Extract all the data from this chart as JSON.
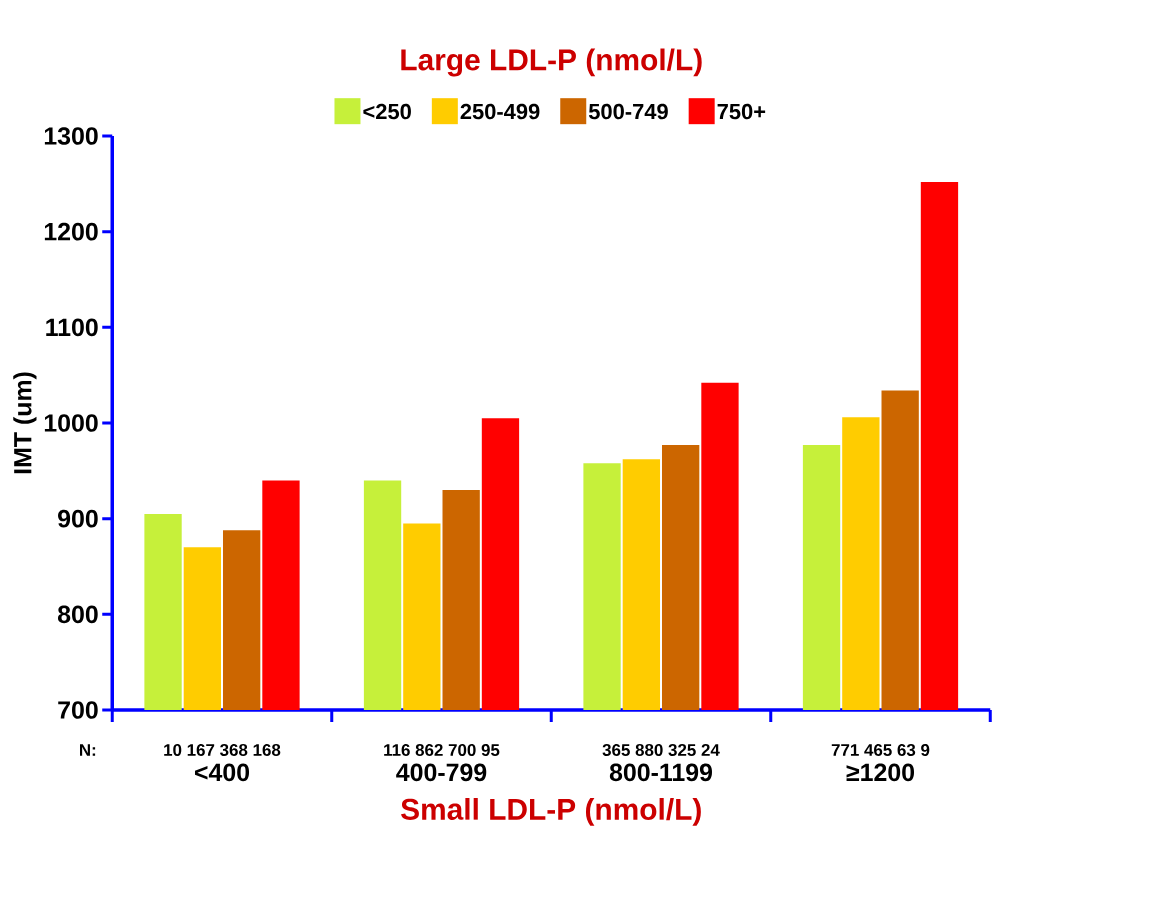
{
  "chart_data": {
    "type": "bar",
    "title": "Large LDL-P (nmol/L)",
    "xlabel": "Small LDL-P (nmol/L)",
    "ylabel": "IMT (um)",
    "categories": [
      "<400",
      "400-799",
      "800-1199",
      "≥1200"
    ],
    "series": [
      {
        "name": "<250",
        "color": "#c6f03a",
        "values": [
          905,
          940,
          958,
          977
        ]
      },
      {
        "name": "250-499",
        "color": "#ffcc00",
        "values": [
          870,
          895,
          962,
          1006
        ]
      },
      {
        "name": "500-749",
        "color": "#cc6600",
        "values": [
          888,
          930,
          977,
          1034
        ]
      },
      {
        "name": "750+",
        "color": "#ff0000",
        "values": [
          940,
          1005,
          1042,
          1252
        ]
      }
    ],
    "ylim": [
      700,
      1300
    ],
    "yticks": [
      700,
      800,
      900,
      1000,
      1100,
      1200,
      1300
    ],
    "legend": "top",
    "annotations": [
      "N:",
      "10 167 368 168",
      "116 862 700 95",
      "365 880 325 24",
      "771 465 63 9"
    ]
  }
}
